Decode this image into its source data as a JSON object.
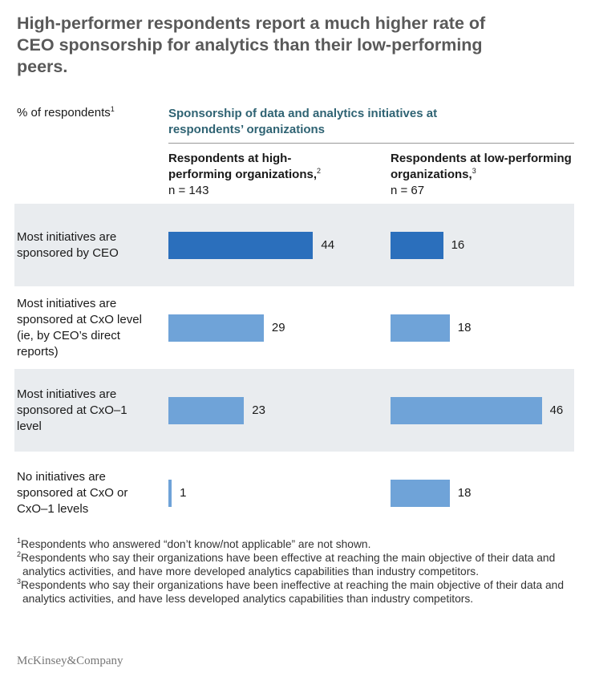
{
  "chart_data": {
    "type": "bar",
    "title": "High-performer respondents report a much higher rate of CEO sponsorship for analytics than their low-performing peers.",
    "value_label": "% of respondents",
    "value_label_note": "1",
    "group_title": "Sponsorship of data and analytics initiatives at respondents’ organizations",
    "categories": [
      "Most initiatives are sponsored by CEO",
      "Most initiatives are sponsored at CxO level (ie, by CEO’s direct reports)",
      "Most initiatives are sponsored at CxO–1 level",
      "No initiatives are sponsored at CxO or CxO–1 levels"
    ],
    "series": [
      {
        "name": "Respondents at high-performing organizations,",
        "note": "2",
        "n": "n = 143",
        "colors": [
          "#2b6fbc",
          "#6fa3d8",
          "#6fa3d8",
          "#6fa3d8"
        ],
        "values": [
          44,
          29,
          23,
          1
        ]
      },
      {
        "name": "Respondents at low-performing organizations,",
        "note": "3",
        "n": "n = 67",
        "colors": [
          "#2b6fbc",
          "#6fa3d8",
          "#6fa3d8",
          "#6fa3d8"
        ],
        "values": [
          16,
          18,
          46,
          18
        ]
      }
    ],
    "band_color": "#e9ecef",
    "footnotes": [
      {
        "mark": "1",
        "text": "Respondents who answered “don’t know/not applicable” are not shown."
      },
      {
        "mark": "2",
        "text": "Respondents who say their organizations have been effective at reaching the main objective of their data and analytics activities, and have more developed analytics capabilities than industry competitors."
      },
      {
        "mark": "3",
        "text": "Respondents who say their organizations have been ineffective at reaching the main objective of their data and analytics activities, and have less developed analytics capabilities than industry competitors."
      }
    ],
    "source": "McKinsey&Company"
  }
}
